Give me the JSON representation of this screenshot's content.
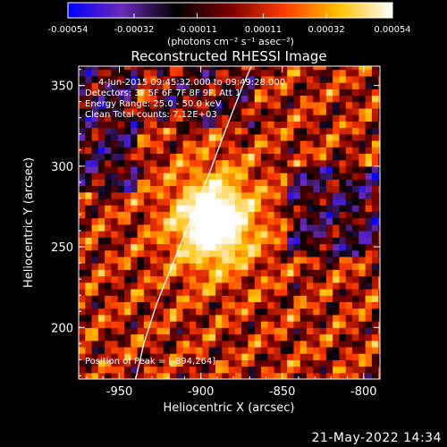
{
  "chart_data": {
    "type": "heatmap",
    "title": "Reconstructed RHESSI Image",
    "xlabel": "Heliocentric X (arcsec)",
    "ylabel": "Heliocentric Y (arcsec)",
    "xlim": [
      -975,
      -790
    ],
    "ylim": [
      168,
      362
    ],
    "x_ticks": [
      -950,
      -900,
      -850,
      -800
    ],
    "x_tick_labels": [
      "-950",
      "-900",
      "-850",
      "-800"
    ],
    "y_ticks": [
      200,
      250,
      300,
      350
    ],
    "y_tick_labels": [
      "200",
      "250",
      "300",
      "350"
    ],
    "colorbar": {
      "colormap": "hot",
      "range": [
        -0.00054,
        0.00054
      ],
      "tick_values": [
        -0.00054,
        -0.00032,
        -0.00011,
        0.00011,
        0.00032,
        0.00054
      ],
      "tick_labels": [
        "-0.00054",
        "-0.00032",
        "-0.00011",
        "0.00011",
        "0.00032",
        "0.00054"
      ],
      "unit_label": "(photons cm⁻² s⁻¹ asec⁻²)",
      "colors": [
        "#0000ff",
        "#6a2ab8",
        "#000000",
        "#7a0000",
        "#ff3c00",
        "#ffc000",
        "#ffffff"
      ]
    },
    "annotations": [
      "4-Jun-2015 09:45:32.000 to 09:49:28.000",
      "Detectors: 3F 5F 6F 7F 8F 9F, Att 1",
      "Energy Range: 25.0 - 50.0 keV",
      "Clean     Total counts: 7.12E+03"
    ],
    "peak_label": "Position of Peak = [-894,264]",
    "peak": {
      "x": -894,
      "y": 264
    },
    "limb_line": [
      [
        -940,
        168
      ],
      [
        -935,
        190
      ],
      [
        -927,
        215
      ],
      [
        -915,
        245
      ],
      [
        -905,
        270
      ],
      [
        -895,
        295
      ],
      [
        -885,
        322
      ],
      [
        -875,
        348
      ],
      [
        -869,
        362
      ]
    ],
    "grid": false
  },
  "timestamp": "21-May-2022 14:34"
}
